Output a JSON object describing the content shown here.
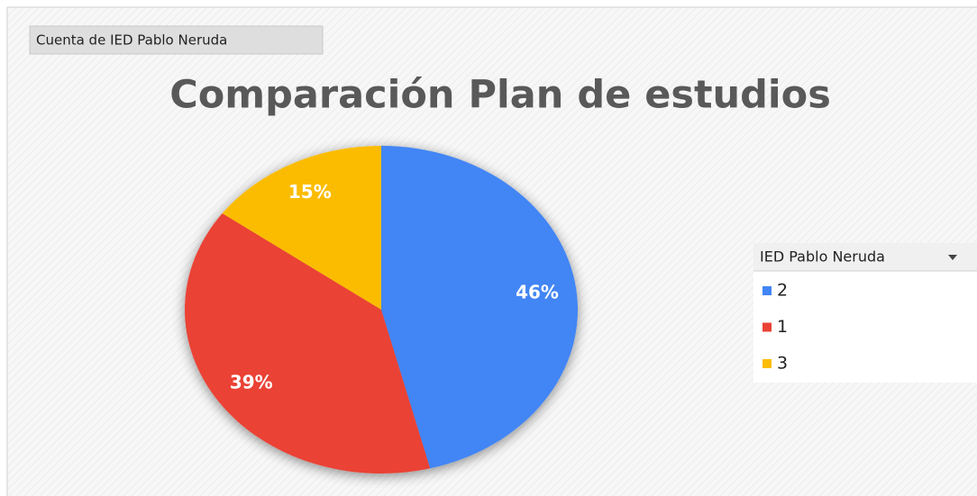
{
  "chart_data": {
    "type": "pie",
    "field_label": "Cuenta de IED Pablo Neruda",
    "title": "Comparación Plan de estudios",
    "legend_title": "IED Pablo Neruda",
    "categories": [
      "2",
      "1",
      "3"
    ],
    "values": [
      46,
      39,
      15
    ],
    "value_labels": [
      "46%",
      "39%",
      "15%"
    ],
    "colors": [
      "#4285f4",
      "#ea4335",
      "#fbbc04"
    ],
    "legend": "right"
  }
}
